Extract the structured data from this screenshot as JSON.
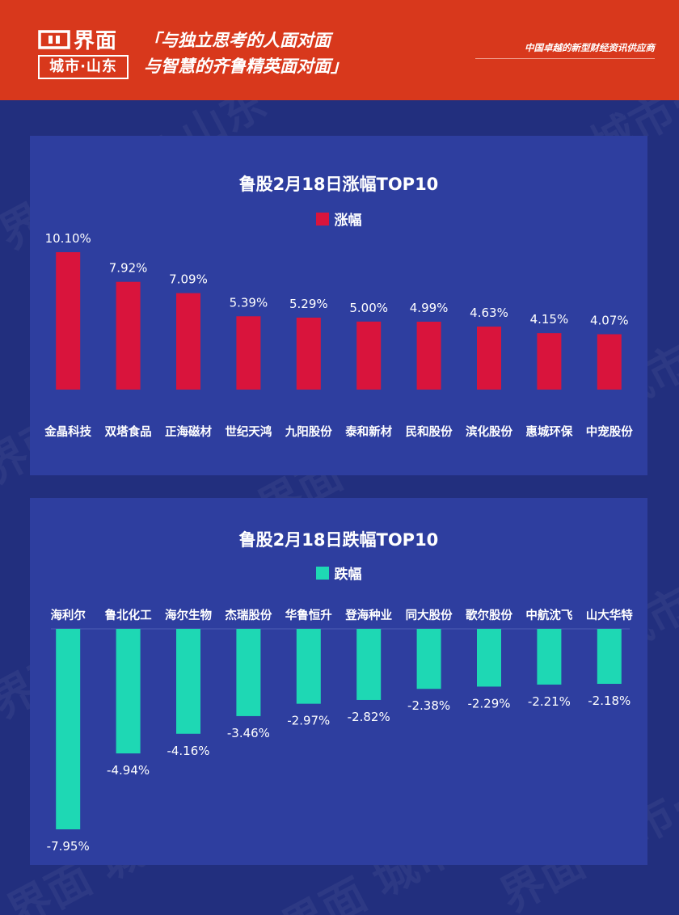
{
  "header": {
    "logo_name": "界面",
    "logo_sub": "城市·山东",
    "slogan_line1": "「与独立思考的人面对面",
    "slogan_line2": "与智慧的齐鲁精英面对面」",
    "tagline": "中国卓越的新型财经资讯供应商"
  },
  "watermark_text": "界面 城市·山东",
  "colors": {
    "header_bg": "#d8381c",
    "page_bg": "#222f7e",
    "panel_bg": "#2e3e9f",
    "gain_bar": "#d9143c",
    "loss_bar": "#1ed8b4"
  },
  "chart_data": [
    {
      "type": "bar",
      "title": "鲁股2月18日涨幅TOP10",
      "series": [
        {
          "name": "涨幅",
          "values": [
            10.1,
            7.92,
            7.09,
            5.39,
            5.29,
            5.0,
            4.99,
            4.63,
            4.15,
            4.07
          ],
          "labels": [
            "10.10%",
            "7.92%",
            "7.09%",
            "5.39%",
            "5.29%",
            "5.00%",
            "4.99%",
            "4.63%",
            "4.15%",
            "4.07%"
          ]
        }
      ],
      "categories": [
        "金晶科技",
        "双塔食品",
        "正海磁材",
        "世纪天鸿",
        "九阳股份",
        "泰和新材",
        "民和股份",
        "滨化股份",
        "惠城环保",
        "中宠股份"
      ],
      "legend_position": "top-center",
      "grid": false
    },
    {
      "type": "bar",
      "title": "鲁股2月18日跌幅TOP10",
      "series": [
        {
          "name": "跌幅",
          "values": [
            -7.95,
            -4.94,
            -4.16,
            -3.46,
            -2.97,
            -2.82,
            -2.38,
            -2.29,
            -2.21,
            -2.18
          ],
          "labels": [
            "-7.95%",
            "-4.94%",
            "-4.16%",
            "-3.46%",
            "-2.97%",
            "-2.82%",
            "-2.38%",
            "-2.29%",
            "-2.21%",
            "-2.18%"
          ]
        }
      ],
      "categories": [
        "海利尔",
        "鲁北化工",
        "海尔生物",
        "杰瑞股份",
        "华鲁恒升",
        "登海种业",
        "同大股份",
        "歌尔股份",
        "中航沈飞",
        "山大华特"
      ],
      "legend_position": "top-center",
      "grid": false
    }
  ]
}
